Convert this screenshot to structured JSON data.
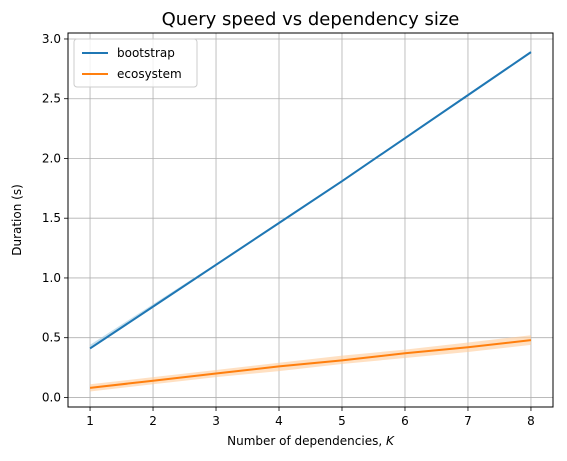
{
  "chart_data": {
    "type": "line",
    "title": "Query speed vs dependency size",
    "xlabel_text": "Number of dependencies, ",
    "xlabel_var": "K",
    "ylabel": "Duration (s)",
    "xlim": [
      0.65,
      8.35
    ],
    "ylim": [
      -0.08,
      3.05
    ],
    "x_ticks": [
      1,
      2,
      3,
      4,
      5,
      6,
      7,
      8
    ],
    "x_tick_labels": [
      "1",
      "2",
      "3",
      "4",
      "5",
      "6",
      "7",
      "8"
    ],
    "y_ticks": [
      0.0,
      0.5,
      1.0,
      1.5,
      2.0,
      2.5,
      3.0
    ],
    "y_tick_labels": [
      "0.0",
      "0.5",
      "1.0",
      "1.5",
      "2.0",
      "2.5",
      "3.0"
    ],
    "grid": true,
    "legend_position": "top-left",
    "x": [
      1,
      2,
      3,
      4,
      5,
      6,
      7,
      8
    ],
    "series": [
      {
        "name": "bootstrap",
        "color": "#1f77b4",
        "band_color": "#9ecae1",
        "values": [
          0.41,
          0.76,
          1.11,
          1.46,
          1.81,
          2.17,
          2.53,
          2.89
        ],
        "lower": [
          0.4,
          0.75,
          1.1,
          1.45,
          1.8,
          2.16,
          2.52,
          2.88
        ],
        "upper": [
          0.44,
          0.78,
          1.12,
          1.47,
          1.82,
          2.18,
          2.54,
          2.9
        ]
      },
      {
        "name": "ecosystem",
        "color": "#ff7f0e",
        "band_color": "#ffcc99",
        "values": [
          0.08,
          0.14,
          0.2,
          0.26,
          0.31,
          0.37,
          0.42,
          0.48
        ],
        "lower": [
          0.05,
          0.11,
          0.17,
          0.22,
          0.28,
          0.33,
          0.38,
          0.44
        ],
        "upper": [
          0.11,
          0.17,
          0.23,
          0.29,
          0.35,
          0.4,
          0.46,
          0.52
        ]
      }
    ]
  }
}
